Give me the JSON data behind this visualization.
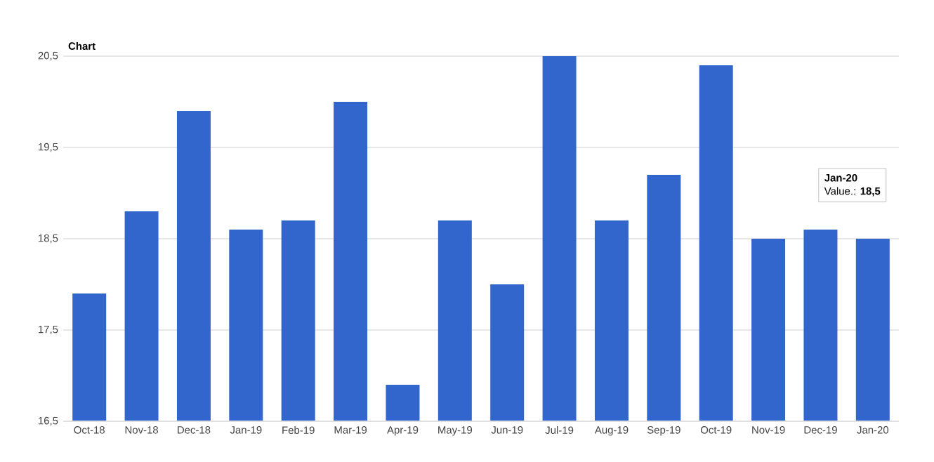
{
  "chart_data": {
    "type": "bar",
    "title": "Chart",
    "categories": [
      "Oct-18",
      "Nov-18",
      "Dec-18",
      "Jan-19",
      "Feb-19",
      "Mar-19",
      "Apr-19",
      "May-19",
      "Jun-19",
      "Jul-19",
      "Aug-19",
      "Sep-19",
      "Oct-19",
      "Nov-19",
      "Dec-19",
      "Jan-20"
    ],
    "values": [
      17.9,
      18.8,
      19.9,
      18.6,
      18.7,
      20.0,
      16.9,
      18.7,
      18.0,
      20.5,
      18.7,
      19.2,
      20.4,
      18.5,
      18.6,
      18.5
    ],
    "color": "#3366cc",
    "ylim": [
      16.5,
      20.5
    ],
    "yticks": [
      {
        "value": 16.5,
        "label": "16,5"
      },
      {
        "value": 17.5,
        "label": "17,5"
      },
      {
        "value": 18.5,
        "label": "18,5"
      },
      {
        "value": 19.5,
        "label": "19,5"
      },
      {
        "value": 20.5,
        "label": "20,5"
      }
    ],
    "grid": "y",
    "annotations": [
      "Jan-20",
      "Value.: **18,5**"
    ]
  }
}
